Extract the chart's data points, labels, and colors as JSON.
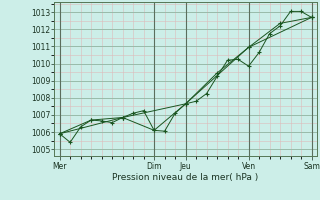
{
  "xlabel": "Pression niveau de la mer( hPa )",
  "background_color": "#cceee8",
  "plot_bg_color": "#cceee8",
  "grid_major_color": "#99bbaa",
  "grid_minor_color": "#ddbbbb",
  "line_color": "#1a5520",
  "vline_color": "#556655",
  "ylim": [
    1004.6,
    1013.6
  ],
  "yticks": [
    1005,
    1006,
    1007,
    1008,
    1009,
    1010,
    1011,
    1012,
    1013
  ],
  "x_day_labels": [
    "Mer",
    "Dim",
    "Jeu",
    "Ven",
    "Sam"
  ],
  "x_day_positions": [
    0,
    9,
    12,
    18,
    24
  ],
  "xlim": [
    -0.5,
    24.5
  ],
  "series1_x": [
    0,
    1,
    2,
    3,
    4,
    5,
    6,
    7,
    8,
    9,
    10,
    11,
    12,
    13,
    14,
    15,
    16,
    17,
    18,
    19,
    20,
    21,
    22,
    23,
    24
  ],
  "series1_y": [
    1005.9,
    1005.4,
    1006.3,
    1006.7,
    1006.65,
    1006.55,
    1006.85,
    1007.1,
    1007.25,
    1006.1,
    1006.05,
    1007.1,
    1007.65,
    1007.8,
    1008.25,
    1009.25,
    1010.2,
    1010.25,
    1009.85,
    1010.65,
    1011.75,
    1012.2,
    1013.05,
    1013.05,
    1012.7
  ],
  "series2_x": [
    0,
    3,
    6,
    9,
    12,
    15,
    18,
    21,
    24
  ],
  "series2_y": [
    1005.9,
    1006.7,
    1006.85,
    1006.1,
    1007.65,
    1009.45,
    1010.95,
    1012.35,
    1012.7
  ],
  "series3_x": [
    0,
    6,
    12,
    18,
    24
  ],
  "series3_y": [
    1005.9,
    1006.85,
    1007.65,
    1010.95,
    1012.7
  ]
}
